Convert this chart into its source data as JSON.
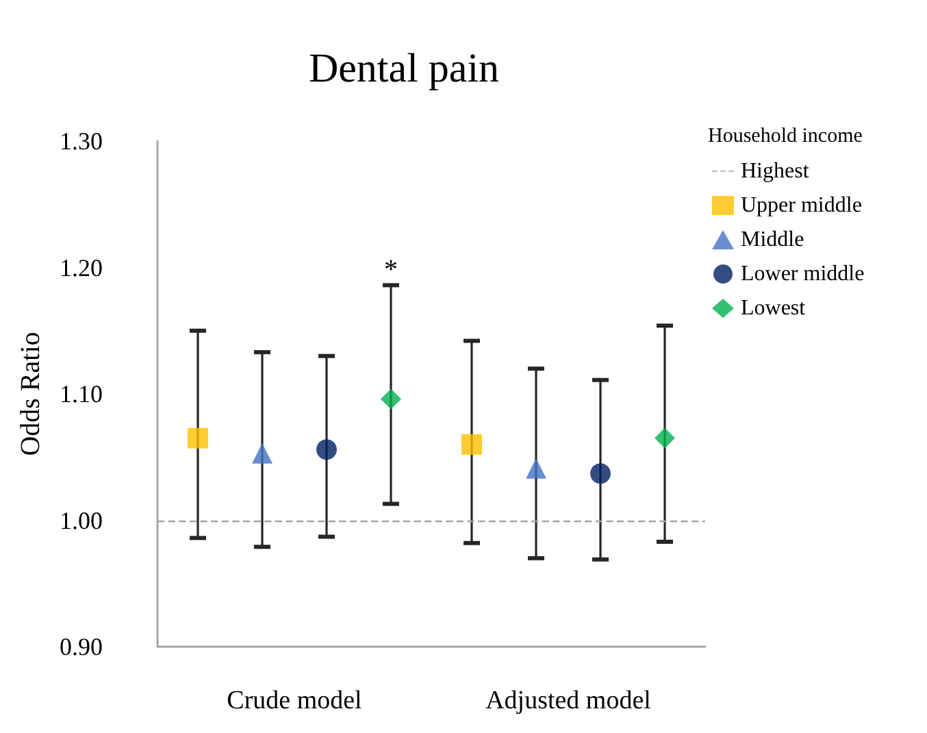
{
  "chart_data": {
    "type": "scatter",
    "title": "Dental pain",
    "ylabel": "Odds Ratio",
    "legend_title": "Household income",
    "categories": [
      "Crude model",
      "Adjusted model"
    ],
    "series": [
      {
        "name": "Upper middle",
        "color": "#ffc000",
        "marker": "square",
        "values": [
          1.065,
          1.06
        ],
        "errors": [
          [
            0.986,
            1.15
          ],
          [
            0.982,
            1.142
          ]
        ]
      },
      {
        "name": "Middle",
        "color": "#4472c4",
        "marker": "triangle",
        "values": [
          1.053,
          1.041
        ],
        "errors": [
          [
            0.979,
            1.133
          ],
          [
            0.97,
            1.12
          ]
        ]
      },
      {
        "name": "Lower middle",
        "color": "#002060",
        "marker": "circle",
        "values": [
          1.056,
          1.037
        ],
        "errors": [
          [
            0.987,
            1.13
          ],
          [
            0.969,
            1.111
          ]
        ]
      },
      {
        "name": "Lowest",
        "color": "#00b050",
        "marker": "diamond",
        "values": [
          1.096,
          1.065
        ],
        "errors": [
          [
            1.013,
            1.186
          ],
          [
            0.983,
            1.154
          ]
        ]
      }
    ],
    "ref_lines": [
      {
        "axis": "y",
        "value": 1.0,
        "label": "Highest",
        "color": "#a6a6a6",
        "line_style": "dashed"
      }
    ],
    "annotations": [
      "*"
    ],
    "ylim": [
      0.9,
      1.3
    ],
    "yticks": [
      {
        "value": 0.9,
        "label": "0.90"
      },
      {
        "value": 1.0,
        "label": "1.00"
      },
      {
        "value": 1.1,
        "label": "1.10"
      },
      {
        "value": 1.2,
        "label": "1.20"
      },
      {
        "value": 1.3,
        "label": "1.30"
      }
    ],
    "grid": false,
    "legend": "top right"
  }
}
